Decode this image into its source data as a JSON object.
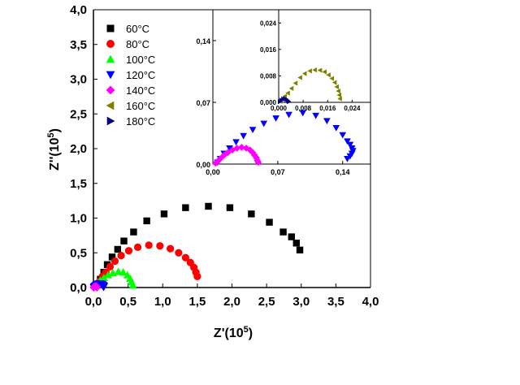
{
  "chart_data": [
    {
      "type": "scatter",
      "role": "main",
      "xlabel": "Z'(10",
      "xlabel_exp": "5",
      "xlabel_close": ")",
      "ylabel": "Z''(10",
      "ylabel_exp": "5",
      "ylabel_close": ")",
      "xlim": [
        0.0,
        4.0
      ],
      "ylim": [
        0.0,
        4.0
      ],
      "xticks": [
        "0,0",
        "0,5",
        "1,0",
        "1,5",
        "2,0",
        "2,5",
        "3,0",
        "3,5",
        "4,0"
      ],
      "yticks": [
        "0,0",
        "0,5",
        "1,0",
        "1,5",
        "2,0",
        "2,5",
        "3,0",
        "3,5",
        "4,0"
      ],
      "grid": false,
      "legend_position": "top-left",
      "series": [
        {
          "name": "60°C",
          "marker": "square",
          "color": "#000000",
          "points": [
            [
              0.06,
              0.04
            ],
            [
              0.1,
              0.12
            ],
            [
              0.15,
              0.22
            ],
            [
              0.2,
              0.33
            ],
            [
              0.27,
              0.44
            ],
            [
              0.35,
              0.55
            ],
            [
              0.44,
              0.67
            ],
            [
              0.58,
              0.8
            ],
            [
              0.77,
              0.96
            ],
            [
              1.02,
              1.06
            ],
            [
              1.33,
              1.15
            ],
            [
              1.66,
              1.17
            ],
            [
              1.97,
              1.15
            ],
            [
              2.28,
              1.06
            ],
            [
              2.54,
              0.94
            ],
            [
              2.74,
              0.8
            ],
            [
              2.86,
              0.73
            ],
            [
              2.93,
              0.64
            ],
            [
              2.98,
              0.54
            ]
          ]
        },
        {
          "name": "80°C",
          "marker": "circle",
          "color": "#ff0000",
          "points": [
            [
              0.05,
              0.03
            ],
            [
              0.09,
              0.09
            ],
            [
              0.13,
              0.16
            ],
            [
              0.18,
              0.22
            ],
            [
              0.24,
              0.3
            ],
            [
              0.31,
              0.38
            ],
            [
              0.4,
              0.46
            ],
            [
              0.51,
              0.53
            ],
            [
              0.64,
              0.58
            ],
            [
              0.8,
              0.61
            ],
            [
              0.96,
              0.6
            ],
            [
              1.11,
              0.56
            ],
            [
              1.23,
              0.5
            ],
            [
              1.33,
              0.43
            ],
            [
              1.4,
              0.36
            ],
            [
              1.45,
              0.29
            ],
            [
              1.48,
              0.22
            ],
            [
              1.5,
              0.16
            ]
          ]
        },
        {
          "name": "100°C",
          "marker": "triangle-up",
          "color": "#00ff00",
          "points": [
            [
              0.03,
              0.02
            ],
            [
              0.06,
              0.06
            ],
            [
              0.1,
              0.1
            ],
            [
              0.15,
              0.14
            ],
            [
              0.21,
              0.18
            ],
            [
              0.28,
              0.21
            ],
            [
              0.36,
              0.23
            ],
            [
              0.43,
              0.22
            ],
            [
              0.49,
              0.18
            ],
            [
              0.53,
              0.13
            ],
            [
              0.55,
              0.08
            ],
            [
              0.57,
              0.03
            ]
          ]
        },
        {
          "name": "120°C",
          "marker": "triangle-down",
          "color": "#0000ff",
          "points": [
            [
              0.005,
              0.002
            ],
            [
              0.008,
              0.006
            ],
            [
              0.012,
              0.012
            ],
            [
              0.018,
              0.018
            ],
            [
              0.025,
              0.025
            ],
            [
              0.033,
              0.032
            ],
            [
              0.043,
              0.039
            ],
            [
              0.055,
              0.046
            ],
            [
              0.068,
              0.052
            ],
            [
              0.082,
              0.056
            ],
            [
              0.097,
              0.058
            ],
            [
              0.111,
              0.055
            ],
            [
              0.123,
              0.049
            ],
            [
              0.133,
              0.041
            ],
            [
              0.14,
              0.033
            ],
            [
              0.145,
              0.026
            ],
            [
              0.148,
              0.022
            ],
            [
              0.15,
              0.018
            ],
            [
              0.151,
              0.015
            ],
            [
              0.15,
              0.012
            ],
            [
              0.148,
              0.009
            ],
            [
              0.145,
              0.006
            ]
          ]
        },
        {
          "name": "140°C",
          "marker": "diamond",
          "color": "#ff00ff",
          "points": [
            [
              0.003,
              0.001
            ],
            [
              0.005,
              0.003
            ],
            [
              0.008,
              0.006
            ],
            [
              0.012,
              0.01
            ],
            [
              0.016,
              0.013
            ],
            [
              0.021,
              0.016
            ],
            [
              0.026,
              0.018
            ],
            [
              0.031,
              0.019
            ],
            [
              0.036,
              0.018
            ],
            [
              0.04,
              0.016
            ],
            [
              0.043,
              0.013
            ],
            [
              0.045,
              0.01
            ],
            [
              0.047,
              0.007
            ],
            [
              0.048,
              0.004
            ],
            [
              0.049,
              0.002
            ]
          ]
        }
      ]
    },
    {
      "type": "scatter",
      "role": "inset",
      "xlim": [
        0.0,
        0.17
      ],
      "ylim": [
        0.0,
        0.175
      ],
      "xticks": [
        {
          "v": 0.0,
          "t": "0,00"
        },
        {
          "v": 0.07,
          "t": "0,07"
        },
        {
          "v": 0.14,
          "t": "0,14"
        }
      ],
      "yticks": [
        {
          "v": 0.0,
          "t": "0,00"
        },
        {
          "v": 0.07,
          "t": "0,07"
        },
        {
          "v": 0.14,
          "t": "0,14"
        }
      ],
      "series": [
        "120°C",
        "140°C"
      ]
    },
    {
      "type": "scatter",
      "role": "inset-of-inset",
      "xlim": [
        0.0,
        0.03
      ],
      "ylim": [
        0.0,
        0.028
      ],
      "xticks": [
        {
          "v": 0.0,
          "t": "0,000"
        },
        {
          "v": 0.008,
          "t": "0,008"
        },
        {
          "v": 0.016,
          "t": "0,016"
        },
        {
          "v": 0.024,
          "t": "0,024"
        }
      ],
      "yticks": [
        {
          "v": 0.0,
          "t": "0,000"
        },
        {
          "v": 0.008,
          "t": "0,008"
        },
        {
          "v": 0.016,
          "t": "0,016"
        },
        {
          "v": 0.024,
          "t": "0,024"
        }
      ],
      "series": [
        {
          "name": "160°C",
          "marker": "triangle-left",
          "color": "#808000",
          "points": [
            [
              0.0005,
              0.0003
            ],
            [
              0.0012,
              0.001
            ],
            [
              0.002,
              0.0018
            ],
            [
              0.003,
              0.0028
            ],
            [
              0.0042,
              0.0042
            ],
            [
              0.0055,
              0.0058
            ],
            [
              0.007,
              0.0075
            ],
            [
              0.0085,
              0.0087
            ],
            [
              0.0102,
              0.0095
            ],
            [
              0.0118,
              0.0098
            ],
            [
              0.0135,
              0.0097
            ],
            [
              0.015,
              0.0092
            ],
            [
              0.0163,
              0.0083
            ],
            [
              0.0174,
              0.0072
            ],
            [
              0.0183,
              0.006
            ],
            [
              0.019,
              0.0047
            ],
            [
              0.0195,
              0.0034
            ],
            [
              0.0198,
              0.0022
            ],
            [
              0.02,
              0.0011
            ]
          ]
        },
        {
          "name": "180°C",
          "marker": "triangle-right",
          "color": "#000080",
          "points": [
            [
              0.0004,
              0.0002
            ],
            [
              0.0009,
              0.0006
            ],
            [
              0.0015,
              0.001
            ],
            [
              0.0021,
              0.0011
            ],
            [
              0.0026,
              0.0009
            ],
            [
              0.003,
              0.0005
            ],
            [
              0.0033,
              0.0002
            ]
          ]
        }
      ]
    }
  ]
}
